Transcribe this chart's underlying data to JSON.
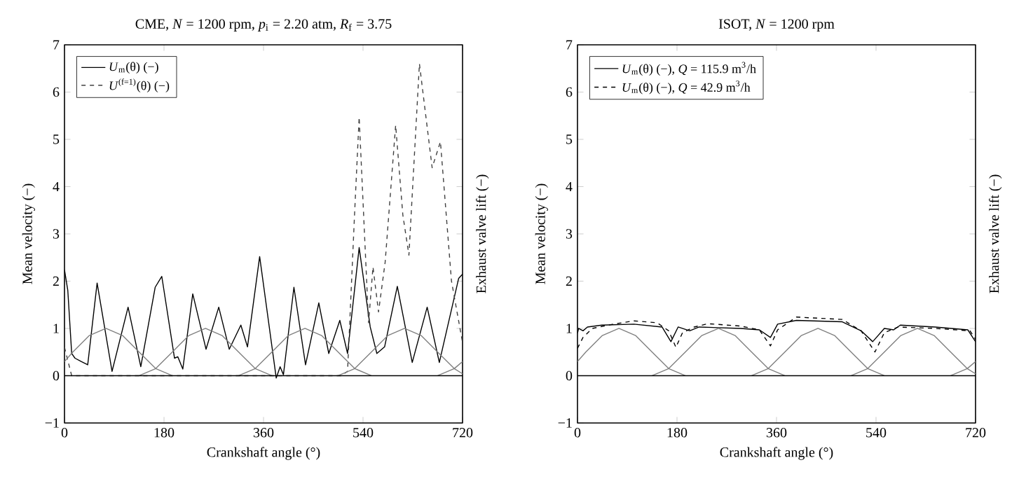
{
  "chart_data": [
    {
      "type": "line",
      "title": "CME, *N* = 1200 rpm, *p*$_{i}$ = 2.20 atm, *R*$_{f}$ = 3.75",
      "xlabel": "Crankshaft angle (°)",
      "ylabel": "Mean velocity (−)",
      "y2label": "Exhaust valve lift (−)",
      "xlim": [
        0,
        720
      ],
      "ylim": [
        -1,
        7
      ],
      "xticks": [
        0,
        180,
        360,
        540,
        720
      ],
      "yticks": [
        {
          "value": -1,
          "label": "−1"
        },
        0,
        1,
        2,
        3,
        4,
        5,
        6,
        7
      ],
      "grid": false,
      "legend": "top left",
      "marker": "none",
      "ref_lines": [
        {
          "axis": "y",
          "value": 0,
          "color": "#000000"
        }
      ],
      "series": [
        {
          "name": "*U*$_{m}$(θ) (−)",
          "color": "#000000",
          "line_style": "solid",
          "x": [
            0,
            6,
            13,
            19,
            30,
            42,
            59,
            86,
            115,
            138,
            164,
            176,
            199,
            205,
            214,
            232,
            256,
            279,
            298,
            319,
            331,
            353,
            383,
            390,
            396,
            415,
            436,
            460,
            478,
            498,
            512,
            533,
            553,
            565,
            579,
            602,
            629,
            656,
            678,
            713,
            720
          ],
          "values": [
            2.24,
            1.8,
            0.47,
            0.37,
            0.3,
            0.23,
            1.96,
            0.09,
            1.45,
            0.19,
            1.87,
            2.1,
            0.37,
            0.4,
            0.14,
            1.73,
            0.56,
            1.45,
            0.56,
            1.07,
            0.61,
            2.52,
            -0.05,
            0.19,
            0.02,
            1.87,
            0.23,
            1.54,
            0.47,
            1.17,
            0.47,
            2.71,
            1.03,
            0.47,
            0.61,
            1.89,
            0.28,
            1.45,
            0.28,
            2.06,
            2.15
          ]
        },
        {
          "name": "*U*$^{(f=1)}$(θ) (−)",
          "color": "#404040",
          "line_style": "dashed",
          "x": [
            0,
            13,
            100,
            300,
            500,
            512,
            525,
            533,
            550,
            558,
            568,
            580,
            599,
            612,
            623,
            642,
            665,
            680,
            700,
            720
          ],
          "values": [
            0.6,
            0,
            0,
            0,
            0,
            0.09,
            3.5,
            5.47,
            1.12,
            2.3,
            1.35,
            2.4,
            5.3,
            3.4,
            2.55,
            6.6,
            4.4,
            4.95,
            2.0,
            0.7
          ]
        },
        {
          "color": "#808080",
          "line_style": "solid",
          "x": [
            0,
            15,
            45,
            75,
            105,
            135,
            165,
            195
          ],
          "values": [
            0.3,
            0.5,
            0.85,
            1,
            0.85,
            0.5,
            0.15,
            0
          ]
        },
        {
          "color": "#808080",
          "line_style": "solid",
          "x": [
            135,
            165,
            195,
            225,
            255,
            285,
            315,
            345,
            375
          ],
          "values": [
            0,
            0.15,
            0.5,
            0.85,
            1,
            0.85,
            0.5,
            0.15,
            0
          ]
        },
        {
          "color": "#808080",
          "line_style": "solid",
          "x": [
            315,
            345,
            375,
            405,
            435,
            465,
            495,
            525,
            555
          ],
          "values": [
            0,
            0.15,
            0.5,
            0.85,
            1,
            0.85,
            0.5,
            0.15,
            0
          ]
        },
        {
          "color": "#808080",
          "line_style": "solid",
          "x": [
            495,
            525,
            555,
            585,
            615,
            645,
            675,
            705,
            720
          ],
          "values": [
            0,
            0.15,
            0.5,
            0.85,
            1,
            0.85,
            0.5,
            0.15,
            0.04
          ]
        },
        {
          "color": "#808080",
          "line_style": "solid",
          "x": [
            675,
            705,
            720
          ],
          "values": [
            0,
            0.15,
            0.3
          ]
        }
      ]
    },
    {
      "type": "line",
      "title": "ISOT, *N* = 1200 rpm",
      "xlabel": "Crankshaft angle (°)",
      "ylabel": "Mean velocity (−)",
      "y2label": "Exhaust valve lift (−)",
      "xlim": [
        0,
        720
      ],
      "ylim": [
        -1,
        7
      ],
      "xticks": [
        0,
        180,
        360,
        540,
        720
      ],
      "yticks": [
        {
          "value": -1,
          "label": "−1"
        },
        0,
        1,
        2,
        3,
        4,
        5,
        6,
        7
      ],
      "grid": false,
      "legend": "top left",
      "marker": "none",
      "ref_lines": [
        {
          "axis": "y",
          "value": 0,
          "color": "#000000"
        }
      ],
      "series": [
        {
          "name": "*U*$_{m}$(θ) (−), *Q* = 115.9 m$^{3}$/h",
          "color": "#000000",
          "line_style": "solid",
          "x": [
            0,
            2,
            10,
            18,
            44,
            102,
            153,
            169,
            182,
            203,
            220,
            295,
            329,
            349,
            362,
            396,
            479,
            513,
            534,
            555,
            572,
            584,
            647,
            706,
            720
          ],
          "values": [
            0.9,
            1.0,
            0.95,
            1.03,
            1.07,
            1.09,
            1.03,
            0.72,
            1.03,
            0.95,
            1.03,
            1.0,
            0.97,
            0.81,
            1.09,
            1.17,
            1.14,
            0.95,
            0.72,
            1.0,
            0.97,
            1.07,
            1.03,
            0.97,
            0.72
          ]
        },
        {
          "name": "*U*$_{m}$(θ) (−), *Q* =   42.9 m$^{3}$/h",
          "color": "#000000",
          "line_style": "dashed",
          "x": [
            0,
            10,
            27,
            60,
            102,
            144,
            165,
            178,
            190,
            211,
            236,
            295,
            329,
            349,
            362,
            396,
            479,
            513,
            538,
            555,
            580,
            647,
            710,
            720
          ],
          "values": [
            0.58,
            0.81,
            1.0,
            1.08,
            1.16,
            1.12,
            0.95,
            0.6,
            0.91,
            1.03,
            1.1,
            1.05,
            0.97,
            0.63,
            0.97,
            1.24,
            1.19,
            0.95,
            0.5,
            0.91,
            1.03,
            1.0,
            0.95,
            0.77
          ]
        },
        {
          "color": "#808080",
          "line_style": "solid",
          "x": [
            0,
            15,
            45,
            75,
            105,
            135,
            165,
            195
          ],
          "values": [
            0.3,
            0.5,
            0.85,
            1,
            0.85,
            0.5,
            0.15,
            0
          ]
        },
        {
          "color": "#808080",
          "line_style": "solid",
          "x": [
            135,
            165,
            195,
            225,
            255,
            285,
            315,
            345,
            375
          ],
          "values": [
            0,
            0.15,
            0.5,
            0.85,
            1,
            0.85,
            0.5,
            0.15,
            0
          ]
        },
        {
          "color": "#808080",
          "line_style": "solid",
          "x": [
            315,
            345,
            375,
            405,
            435,
            465,
            495,
            525,
            555
          ],
          "values": [
            0,
            0.15,
            0.5,
            0.85,
            1,
            0.85,
            0.5,
            0.15,
            0
          ]
        },
        {
          "color": "#808080",
          "line_style": "solid",
          "x": [
            495,
            525,
            555,
            585,
            615,
            645,
            675,
            705,
            720
          ],
          "values": [
            0,
            0.15,
            0.5,
            0.85,
            1,
            0.85,
            0.5,
            0.15,
            0.04
          ]
        },
        {
          "color": "#808080",
          "line_style": "solid",
          "x": [
            675,
            705,
            720
          ],
          "values": [
            0,
            0.15,
            0.3
          ]
        }
      ]
    }
  ]
}
